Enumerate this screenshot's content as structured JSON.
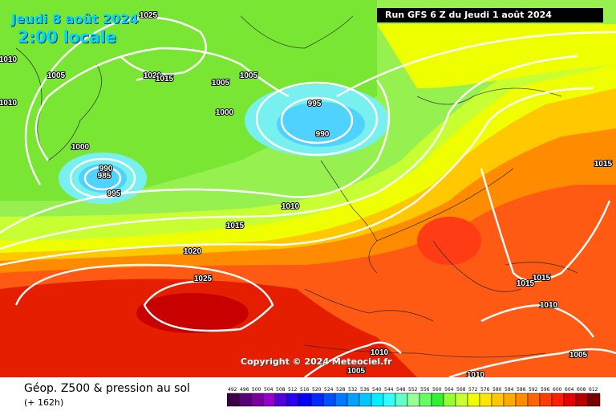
{
  "header": {
    "date": "Jeudi 8 août 2024",
    "time": "2:00 locale",
    "run": "Run GFS 6 Z du Jeudi 1 août 2024"
  },
  "copyright": "Copyright © 2024 Meteociel.fr",
  "legend": {
    "title": "Géop. Z500 & pression au sol",
    "subtitle": "(+ 162h)",
    "scale_values": [
      "492",
      "496",
      "500",
      "504",
      "508",
      "512",
      "516",
      "520",
      "524",
      "528",
      "532",
      "536",
      "540",
      "544",
      "548",
      "552",
      "556",
      "560",
      "564",
      "568",
      "572",
      "576",
      "580",
      "584",
      "588",
      "592",
      "596",
      "600",
      "604",
      "608",
      "612"
    ],
    "scale_colors": [
      "#3c0046",
      "#5a0078",
      "#7800a0",
      "#9600c8",
      "#5000dc",
      "#2800f0",
      "#0000ff",
      "#0028ff",
      "#0050ff",
      "#0078ff",
      "#00a0ff",
      "#00c8ff",
      "#00f0ff",
      "#32ffff",
      "#64ffc8",
      "#96ff96",
      "#64ff64",
      "#32f032",
      "#96ff32",
      "#c8ff32",
      "#f0ff00",
      "#ffe600",
      "#ffc800",
      "#ffaa00",
      "#ff8c00",
      "#ff6400",
      "#ff3c00",
      "#ff1e00",
      "#e60000",
      "#b40000",
      "#780000"
    ]
  },
  "map": {
    "sea_background": "#96f050",
    "pressure_labels": [
      {
        "text": "1025",
        "id": "p1025-top"
      },
      {
        "text": "1010",
        "id": "p1010-left1"
      },
      {
        "text": "1010",
        "id": "p1010-left2"
      },
      {
        "text": "1005",
        "id": "p1005-a"
      },
      {
        "text": "1020",
        "id": "p1020-a"
      },
      {
        "text": "1015",
        "id": "p1015-a"
      },
      {
        "text": "1005",
        "id": "p1005-b"
      },
      {
        "text": "1005",
        "id": "p1005-c"
      },
      {
        "text": "995",
        "id": "p995-a"
      },
      {
        "text": "1000",
        "id": "p1000-a"
      },
      {
        "text": "990",
        "id": "p990-a"
      },
      {
        "text": "1000",
        "id": "p1000-b"
      },
      {
        "text": "990",
        "id": "p990-b"
      },
      {
        "text": "985",
        "id": "p985"
      },
      {
        "text": "995",
        "id": "p995-b"
      },
      {
        "text": "1010",
        "id": "p1010-c"
      },
      {
        "text": "1015",
        "id": "p1015-b"
      },
      {
        "text": "1020",
        "id": "p1020-b"
      },
      {
        "text": "1025",
        "id": "p1025-az"
      },
      {
        "text": "1015",
        "id": "p1015-c"
      },
      {
        "text": "1015",
        "id": "p1015-d"
      },
      {
        "text": "1015",
        "id": "p1015-e"
      },
      {
        "text": "1010",
        "id": "p1010-d"
      },
      {
        "text": "1010",
        "id": "p1010-e"
      },
      {
        "text": "1005",
        "id": "p1005-d"
      },
      {
        "text": "1005",
        "id": "p1005-e"
      },
      {
        "text": "1010",
        "id": "p1010-f"
      }
    ]
  }
}
